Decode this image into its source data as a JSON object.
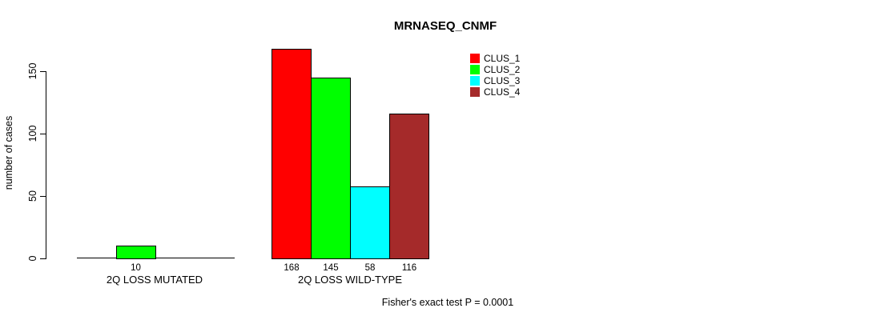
{
  "caption": "Fisher's exact test P = 0.0001",
  "chart_data": {
    "type": "bar",
    "title": "MRNASEQ_CNMF",
    "xlabel": "",
    "ylabel": "number of cases",
    "yticks": [
      0,
      50,
      100,
      150
    ],
    "ylim": [
      0,
      168
    ],
    "grid": false,
    "legend_position": "top-right",
    "categories": [
      "2Q LOSS MUTATED",
      "2Q LOSS WILD-TYPE"
    ],
    "groups": [
      {
        "label": "2Q LOSS MUTATED",
        "values": [
          0,
          10,
          0,
          0
        ],
        "bar_labels": [
          "",
          "10",
          "",
          ""
        ]
      },
      {
        "label": "2Q LOSS WILD-TYPE",
        "values": [
          168,
          145,
          58,
          116
        ],
        "bar_labels": [
          "168",
          "145",
          "58",
          "116"
        ]
      }
    ],
    "series": [
      {
        "name": "CLUS_1",
        "color": "#FF0000",
        "values": [
          0,
          168
        ]
      },
      {
        "name": "CLUS_2",
        "color": "#00FF00",
        "values": [
          10,
          145
        ]
      },
      {
        "name": "CLUS_3",
        "color": "#00FFFF",
        "values": [
          0,
          58
        ]
      },
      {
        "name": "CLUS_4",
        "color": "#A52A2A",
        "values": [
          0,
          116
        ]
      }
    ],
    "legend": [
      {
        "label": "CLUS_1",
        "color": "#FF0000"
      },
      {
        "label": "CLUS_2",
        "color": "#00FF00"
      },
      {
        "label": "CLUS_3",
        "color": "#00FFFF"
      },
      {
        "label": "CLUS_4",
        "color": "#A52A2A"
      }
    ]
  }
}
